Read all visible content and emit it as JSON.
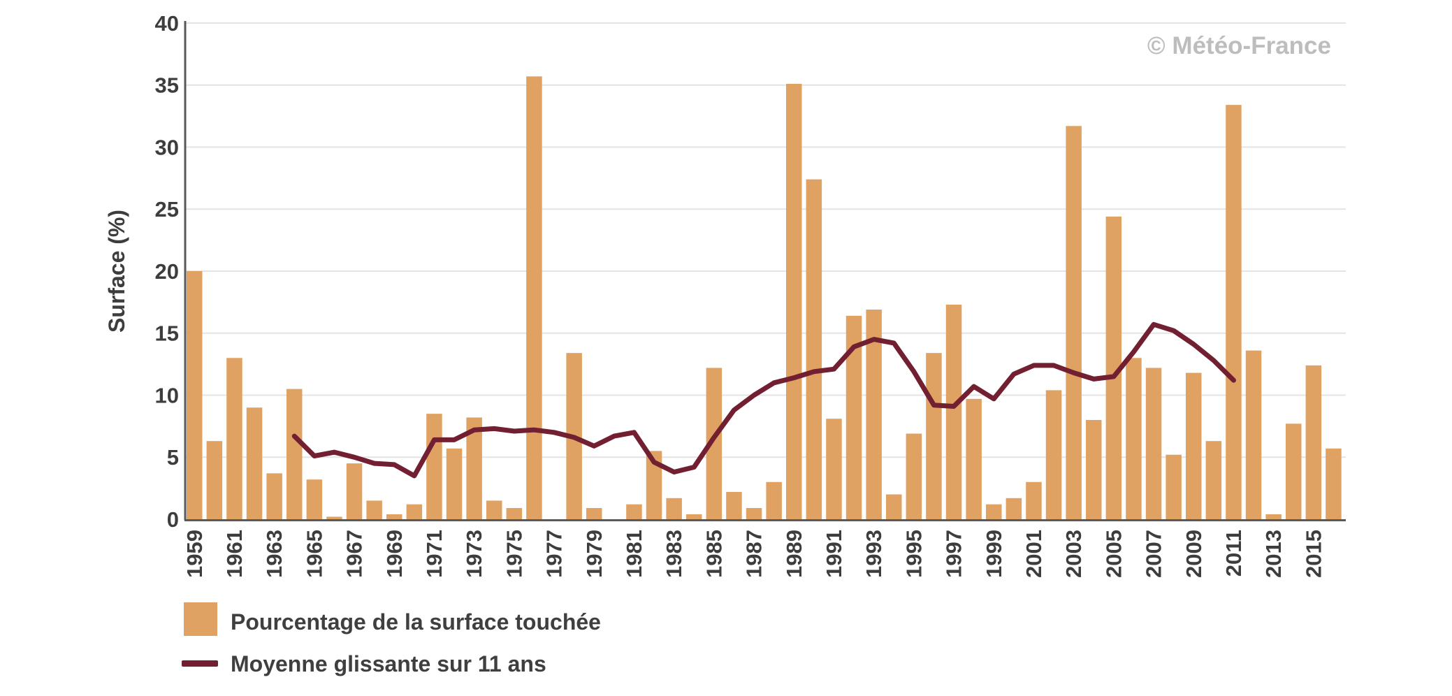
{
  "watermark": "© Météo-France",
  "chart_data": {
    "type": "bar",
    "title": "",
    "xlabel": "",
    "ylabel": "Surface (%)",
    "ylim": [
      0,
      40
    ],
    "yticks": [
      0,
      5,
      10,
      15,
      20,
      25,
      30,
      35,
      40
    ],
    "grid": true,
    "legend_position": "bottom-left",
    "x_tick_labels": [
      "1959",
      "1961",
      "1963",
      "1965",
      "1967",
      "1969",
      "1971",
      "1973",
      "1975",
      "1977",
      "1979",
      "1981",
      "1983",
      "1985",
      "1987",
      "1989",
      "1991",
      "1993",
      "1995",
      "1997",
      "1999",
      "2001",
      "2003",
      "2005",
      "2007",
      "2009",
      "2011",
      "2013",
      "2015"
    ],
    "years": [
      1959,
      1960,
      1961,
      1962,
      1963,
      1964,
      1965,
      1966,
      1967,
      1968,
      1969,
      1970,
      1971,
      1972,
      1973,
      1974,
      1975,
      1976,
      1977,
      1978,
      1979,
      1980,
      1981,
      1982,
      1983,
      1984,
      1985,
      1986,
      1987,
      1988,
      1989,
      1990,
      1991,
      1992,
      1993,
      1994,
      1995,
      1996,
      1997,
      1998,
      1999,
      2000,
      2001,
      2002,
      2003,
      2004,
      2005,
      2006,
      2007,
      2008,
      2009,
      2010,
      2011,
      2012,
      2013,
      2014,
      2015,
      2016
    ],
    "series": [
      {
        "name": "Pourcentage de la surface touchée",
        "type": "bar",
        "color": "#dfa263",
        "values": [
          20.0,
          6.3,
          13.0,
          9.0,
          3.7,
          10.5,
          3.2,
          0.2,
          4.5,
          1.5,
          0.4,
          1.2,
          8.5,
          5.7,
          8.2,
          1.5,
          0.9,
          35.7,
          0.0,
          13.4,
          0.9,
          0.0,
          1.2,
          5.5,
          1.7,
          0.4,
          12.2,
          2.2,
          0.9,
          3.0,
          35.1,
          27.4,
          8.1,
          16.4,
          16.9,
          2.0,
          6.9,
          13.4,
          17.3,
          9.7,
          1.2,
          1.7,
          3.0,
          10.4,
          31.7,
          8.0,
          24.4,
          13.0,
          12.2,
          5.2,
          11.8,
          6.3,
          33.4,
          13.6,
          0.4,
          7.7,
          12.4,
          5.7
        ]
      },
      {
        "name": "Moyenne glissante sur 11 ans",
        "type": "line",
        "color": "#722031",
        "start_year": 1964,
        "end_year": 2011,
        "values": [
          6.7,
          5.1,
          5.4,
          5.0,
          4.5,
          4.4,
          3.5,
          6.4,
          6.4,
          7.2,
          7.3,
          7.1,
          7.2,
          7.0,
          6.6,
          5.9,
          6.7,
          7.0,
          4.6,
          3.8,
          4.2,
          6.6,
          8.8,
          10.0,
          11.0,
          11.4,
          11.9,
          12.1,
          13.9,
          14.5,
          14.2,
          11.9,
          9.2,
          9.1,
          10.7,
          9.7,
          11.7,
          12.4,
          12.4,
          11.8,
          11.3,
          11.5,
          13.5,
          15.7,
          15.2,
          14.1,
          12.8,
          11.2
        ]
      }
    ],
    "colors": {
      "background": "#ffffff",
      "gridline": "#e4e4e4",
      "axis_line": "#595959",
      "tick_text": "#3d3d3d",
      "watermark": "#bdbdbd"
    }
  }
}
